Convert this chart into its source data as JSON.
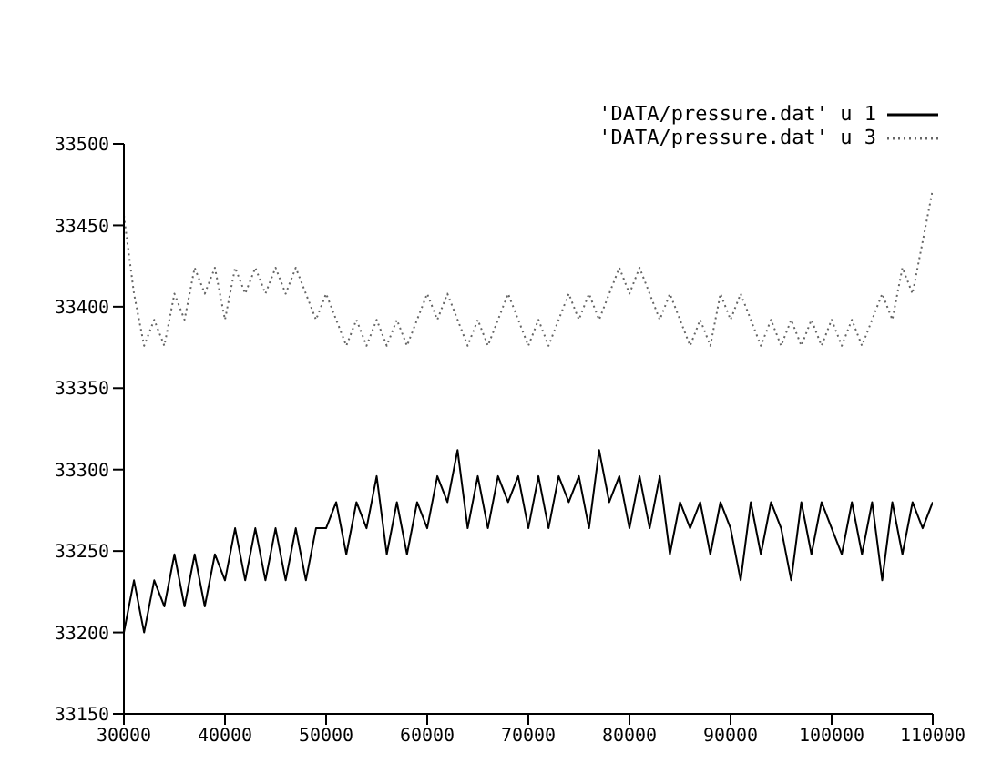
{
  "chart_data": {
    "type": "line",
    "x": [
      30000,
      31000,
      32000,
      33000,
      34000,
      35000,
      36000,
      37000,
      38000,
      39000,
      40000,
      41000,
      42000,
      43000,
      44000,
      45000,
      46000,
      47000,
      48000,
      49000,
      50000,
      51000,
      52000,
      53000,
      54000,
      55000,
      56000,
      57000,
      58000,
      59000,
      60000,
      61000,
      62000,
      63000,
      64000,
      65000,
      66000,
      67000,
      68000,
      69000,
      70000,
      71000,
      72000,
      73000,
      74000,
      75000,
      76000,
      77000,
      78000,
      79000,
      80000,
      81000,
      82000,
      83000,
      84000,
      85000,
      86000,
      87000,
      88000,
      89000,
      90000,
      91000,
      92000,
      93000,
      94000,
      95000,
      96000,
      97000,
      98000,
      99000,
      100000,
      101000,
      102000,
      103000,
      104000,
      105000,
      106000,
      107000,
      108000,
      109000,
      110000
    ],
    "series": [
      {
        "name": "'DATA/pressure.dat' u 1",
        "color": "#000000",
        "line_style": "solid",
        "values": [
          33200,
          33232,
          33200,
          33232,
          33216,
          33248,
          33216,
          33248,
          33216,
          33248,
          33232,
          33264,
          33232,
          33264,
          33232,
          33264,
          33232,
          33264,
          33232,
          33264,
          33264,
          33280,
          33248,
          33280,
          33264,
          33296,
          33248,
          33280,
          33248,
          33280,
          33264,
          33296,
          33280,
          33312,
          33264,
          33296,
          33264,
          33296,
          33280,
          33296,
          33264,
          33296,
          33264,
          33296,
          33280,
          33296,
          33264,
          33312,
          33280,
          33296,
          33264,
          33296,
          33264,
          33296,
          33248,
          33280,
          33264,
          33280,
          33248,
          33280,
          33264,
          33232,
          33280,
          33248,
          33280,
          33264,
          33232,
          33280,
          33248,
          33280,
          33264,
          33248,
          33280,
          33248,
          33280,
          33232,
          33280,
          33248,
          33280,
          33264,
          33280
        ]
      },
      {
        "name": "'DATA/pressure.dat' u 3",
        "color": "#666666",
        "line_style": "dotted",
        "values": [
          33456,
          33408,
          33376,
          33392,
          33376,
          33408,
          33392,
          33424,
          33408,
          33424,
          33392,
          33424,
          33408,
          33424,
          33408,
          33424,
          33408,
          33424,
          33408,
          33392,
          33408,
          33392,
          33376,
          33392,
          33376,
          33392,
          33376,
          33392,
          33376,
          33392,
          33408,
          33392,
          33408,
          33392,
          33376,
          33392,
          33376,
          33392,
          33408,
          33392,
          33376,
          33392,
          33376,
          33392,
          33408,
          33392,
          33408,
          33392,
          33408,
          33424,
          33408,
          33424,
          33408,
          33392,
          33408,
          33392,
          33376,
          33392,
          33376,
          33408,
          33392,
          33408,
          33392,
          33376,
          33392,
          33376,
          33392,
          33376,
          33392,
          33376,
          33392,
          33376,
          33392,
          33376,
          33392,
          33408,
          33392,
          33424,
          33408,
          33440,
          33472
        ]
      }
    ],
    "xlim": [
      30000,
      110000
    ],
    "xticks": [
      30000,
      40000,
      50000,
      60000,
      70000,
      80000,
      90000,
      100000,
      110000
    ],
    "ylim": [
      33150,
      33500
    ],
    "yticks": [
      33150,
      33200,
      33250,
      33300,
      33350,
      33400,
      33450,
      33500
    ],
    "grid": false,
    "legend": "top right",
    "marker": "none"
  }
}
